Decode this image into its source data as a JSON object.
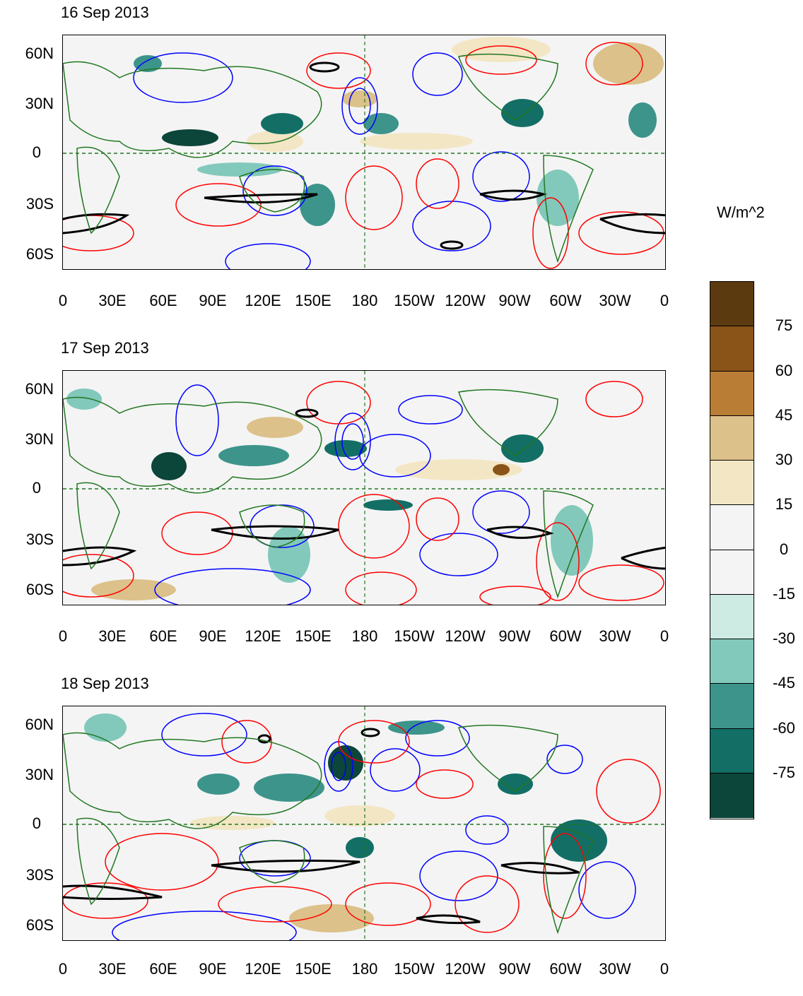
{
  "panels": [
    {
      "title": "16 Sep 2013"
    },
    {
      "title": "17 Sep 2013"
    },
    {
      "title": "18 Sep 2013"
    }
  ],
  "lat_labels": [
    "60N",
    "30N",
    "0",
    "30S",
    "60S"
  ],
  "lon_labels": [
    "0",
    "30E",
    "60E",
    "90E",
    "120E",
    "150E",
    "180",
    "150W",
    "120W",
    "90W",
    "60W",
    "30W",
    "0"
  ],
  "colorbar": {
    "unit": "W/m^2",
    "labels": [
      "75",
      "60",
      "45",
      "30",
      "15",
      "0",
      "-15",
      "-30",
      "-45",
      "-60",
      "-75"
    ],
    "colors": [
      "#5c3a0f",
      "#8a5318",
      "#b97d35",
      "#dcc18a",
      "#f3e6c4",
      "#f4f4f4",
      "#f4f4f4",
      "#cdeae3",
      "#82c9bb",
      "#3d948b",
      "#136f65",
      "#0c4539"
    ]
  },
  "legend_colors": {
    "positive_contour": "#ff0000",
    "negative_contour": "#0000ff",
    "thick_contour": "#000000",
    "coastline": "#227722",
    "equator": "#227722"
  }
}
